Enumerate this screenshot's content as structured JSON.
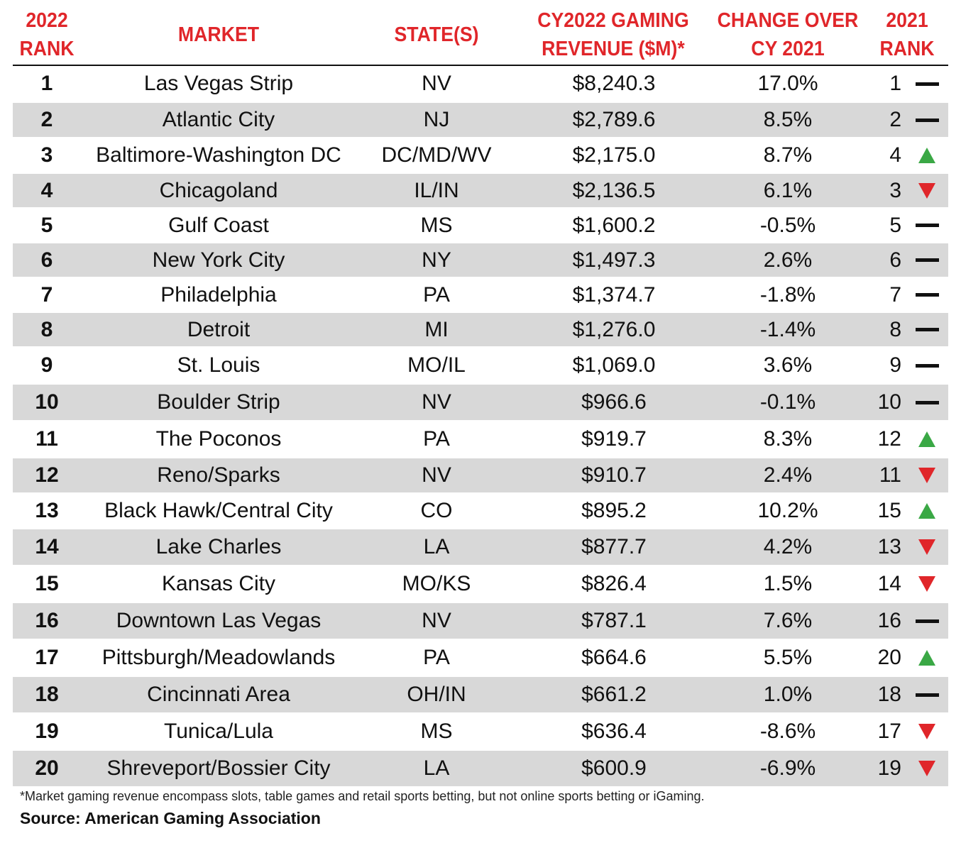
{
  "columns": [
    "2022\nRANK",
    "MARKET",
    "STATE(S)",
    "CY2022 GAMING\nREVENUE ($M)*",
    "CHANGE OVER\nCY 2021",
    "2021\nRANK"
  ],
  "colors": {
    "header": "#e0262a",
    "up": "#3aa845",
    "down": "#e0262a",
    "shade": "#d8d8d8"
  },
  "rows": [
    {
      "rank": "1",
      "market": "Las Vegas Strip",
      "states": "NV",
      "revenue": "$8,240.3",
      "change": "17.0%",
      "prev_rank": "1",
      "trend": "same"
    },
    {
      "rank": "2",
      "market": "Atlantic City",
      "states": "NJ",
      "revenue": "$2,789.6",
      "change": "8.5%",
      "prev_rank": "2",
      "trend": "same"
    },
    {
      "rank": "3",
      "market": "Baltimore-Washington DC",
      "states": "DC/MD/WV",
      "revenue": "$2,175.0",
      "change": "8.7%",
      "prev_rank": "4",
      "trend": "up"
    },
    {
      "rank": "4",
      "market": "Chicagoland",
      "states": "IL/IN",
      "revenue": "$2,136.5",
      "change": "6.1%",
      "prev_rank": "3",
      "trend": "down"
    },
    {
      "rank": "5",
      "market": "Gulf Coast",
      "states": "MS",
      "revenue": "$1,600.2",
      "change": "-0.5%",
      "prev_rank": "5",
      "trend": "same"
    },
    {
      "rank": "6",
      "market": "New York City",
      "states": "NY",
      "revenue": "$1,497.3",
      "change": "2.6%",
      "prev_rank": "6",
      "trend": "same"
    },
    {
      "rank": "7",
      "market": "Philadelphia",
      "states": "PA",
      "revenue": "$1,374.7",
      "change": "-1.8%",
      "prev_rank": "7",
      "trend": "same"
    },
    {
      "rank": "8",
      "market": "Detroit",
      "states": "MI",
      "revenue": "$1,276.0",
      "change": "-1.4%",
      "prev_rank": "8",
      "trend": "same"
    },
    {
      "rank": "9",
      "market": "St. Louis",
      "states": "MO/IL",
      "revenue": "$1,069.0",
      "change": "3.6%",
      "prev_rank": "9",
      "trend": "same"
    },
    {
      "rank": "10",
      "market": "Boulder Strip",
      "states": "NV",
      "revenue": "$966.6",
      "change": "-0.1%",
      "prev_rank": "10",
      "trend": "same"
    },
    {
      "rank": "11",
      "market": "The Poconos",
      "states": "PA",
      "revenue": "$919.7",
      "change": "8.3%",
      "prev_rank": "12",
      "trend": "up"
    },
    {
      "rank": "12",
      "market": "Reno/Sparks",
      "states": "NV",
      "revenue": "$910.7",
      "change": "2.4%",
      "prev_rank": "11",
      "trend": "down"
    },
    {
      "rank": "13",
      "market": "Black Hawk/Central City",
      "states": "CO",
      "revenue": "$895.2",
      "change": "10.2%",
      "prev_rank": "15",
      "trend": "up"
    },
    {
      "rank": "14",
      "market": "Lake Charles",
      "states": "LA",
      "revenue": "$877.7",
      "change": "4.2%",
      "prev_rank": "13",
      "trend": "down"
    },
    {
      "rank": "15",
      "market": "Kansas City",
      "states": "MO/KS",
      "revenue": "$826.4",
      "change": "1.5%",
      "prev_rank": "14",
      "trend": "down"
    },
    {
      "rank": "16",
      "market": "Downtown Las Vegas",
      "states": "NV",
      "revenue": "$787.1",
      "change": "7.6%",
      "prev_rank": "16",
      "trend": "same"
    },
    {
      "rank": "17",
      "market": "Pittsburgh/Meadowlands",
      "states": "PA",
      "revenue": "$664.6",
      "change": "5.5%",
      "prev_rank": "20",
      "trend": "up"
    },
    {
      "rank": "18",
      "market": "Cincinnati Area",
      "states": "OH/IN",
      "revenue": "$661.2",
      "change": "1.0%",
      "prev_rank": "18",
      "trend": "same"
    },
    {
      "rank": "19",
      "market": "Tunica/Lula",
      "states": "MS",
      "revenue": "$636.4",
      "change": "-8.6%",
      "prev_rank": "17",
      "trend": "down"
    },
    {
      "rank": "20",
      "market": "Shreveport/Bossier City",
      "states": "LA",
      "revenue": "$600.9",
      "change": "-6.9%",
      "prev_rank": "19",
      "trend": "down"
    }
  ],
  "footnote": "*Market gaming revenue encompass slots, table games and retail sports betting, but not online sports betting or iGaming.",
  "source": "Source: American Gaming Association",
  "chart_data": {
    "type": "table",
    "columns": [
      "2022 RANK",
      "MARKET",
      "STATE(S)",
      "CY2022 GAMING REVENUE ($M)*",
      "CHANGE OVER CY 2021",
      "2021 RANK"
    ],
    "rows": [
      [
        1,
        "Las Vegas Strip",
        "NV",
        8240.3,
        17.0,
        1
      ],
      [
        2,
        "Atlantic City",
        "NJ",
        2789.6,
        8.5,
        2
      ],
      [
        3,
        "Baltimore-Washington DC",
        "DC/MD/WV",
        2175.0,
        8.7,
        4
      ],
      [
        4,
        "Chicagoland",
        "IL/IN",
        2136.5,
        6.1,
        3
      ],
      [
        5,
        "Gulf Coast",
        "MS",
        1600.2,
        -0.5,
        5
      ],
      [
        6,
        "New York City",
        "NY",
        1497.3,
        2.6,
        6
      ],
      [
        7,
        "Philadelphia",
        "PA",
        1374.7,
        -1.8,
        7
      ],
      [
        8,
        "Detroit",
        "MI",
        1276.0,
        -1.4,
        8
      ],
      [
        9,
        "St. Louis",
        "MO/IL",
        1069.0,
        3.6,
        9
      ],
      [
        10,
        "Boulder Strip",
        "NV",
        966.6,
        -0.1,
        10
      ],
      [
        11,
        "The Poconos",
        "PA",
        919.7,
        8.3,
        12
      ],
      [
        12,
        "Reno/Sparks",
        "NV",
        910.7,
        2.4,
        11
      ],
      [
        13,
        "Black Hawk/Central City",
        "CO",
        895.2,
        10.2,
        15
      ],
      [
        14,
        "Lake Charles",
        "LA",
        877.7,
        4.2,
        13
      ],
      [
        15,
        "Kansas City",
        "MO/KS",
        826.4,
        1.5,
        14
      ],
      [
        16,
        "Downtown Las Vegas",
        "NV",
        787.1,
        7.6,
        16
      ],
      [
        17,
        "Pittsburgh/Meadowlands",
        "PA",
        664.6,
        5.5,
        20
      ],
      [
        18,
        "Cincinnati Area",
        "OH/IN",
        661.2,
        1.0,
        18
      ],
      [
        19,
        "Tunica/Lula",
        "MS",
        636.4,
        -8.6,
        17
      ],
      [
        20,
        "Shreveport/Bossier City",
        "LA",
        600.9,
        -6.9,
        19
      ]
    ]
  }
}
